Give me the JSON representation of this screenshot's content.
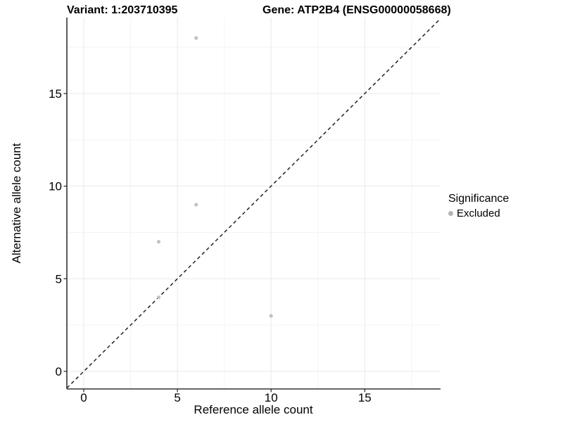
{
  "header": {
    "variant_title": "Variant: 1:203710395",
    "gene_title": "Gene: ATP2B4 (ENSG00000058668)"
  },
  "chart_data": {
    "type": "scatter",
    "title": "Variant: 1:203710395 — Gene: ATP2B4 (ENSG00000058668)",
    "xlabel": "Reference allele count",
    "ylabel": "Alternative allele count",
    "xlim": [
      -0.9,
      19.1
    ],
    "ylim": [
      -0.95,
      19.1
    ],
    "xticks": [
      0,
      5,
      10,
      15
    ],
    "yticks": [
      0,
      5,
      10,
      15
    ],
    "minor_ticks_x": [
      2.5,
      7.5,
      12.5,
      17.5
    ],
    "minor_ticks_y": [
      2.5,
      7.5,
      12.5,
      17.5
    ],
    "grid": true,
    "identity_line": {
      "type": "abline",
      "slope": 1,
      "intercept": 0,
      "style": "dashed",
      "color": "#222222"
    },
    "series": [
      {
        "name": "Excluded",
        "color": "#c1c1c1",
        "points": [
          [
            4,
            4
          ],
          [
            4,
            7
          ],
          [
            6,
            9
          ],
          [
            6,
            18
          ],
          [
            10,
            3
          ]
        ]
      }
    ],
    "legend": {
      "title": "Significance",
      "position": "right",
      "entries": [
        {
          "label": "Excluded",
          "color": "#b5b5b5"
        }
      ]
    }
  },
  "colors": {
    "background": "#ffffff",
    "axis_line": "#333333",
    "grid_major": "#e9e9e9",
    "grid_minor": "#f4f4f4",
    "point": "#c1c1c1",
    "dashed_line": "#222222",
    "text": "#000000"
  }
}
